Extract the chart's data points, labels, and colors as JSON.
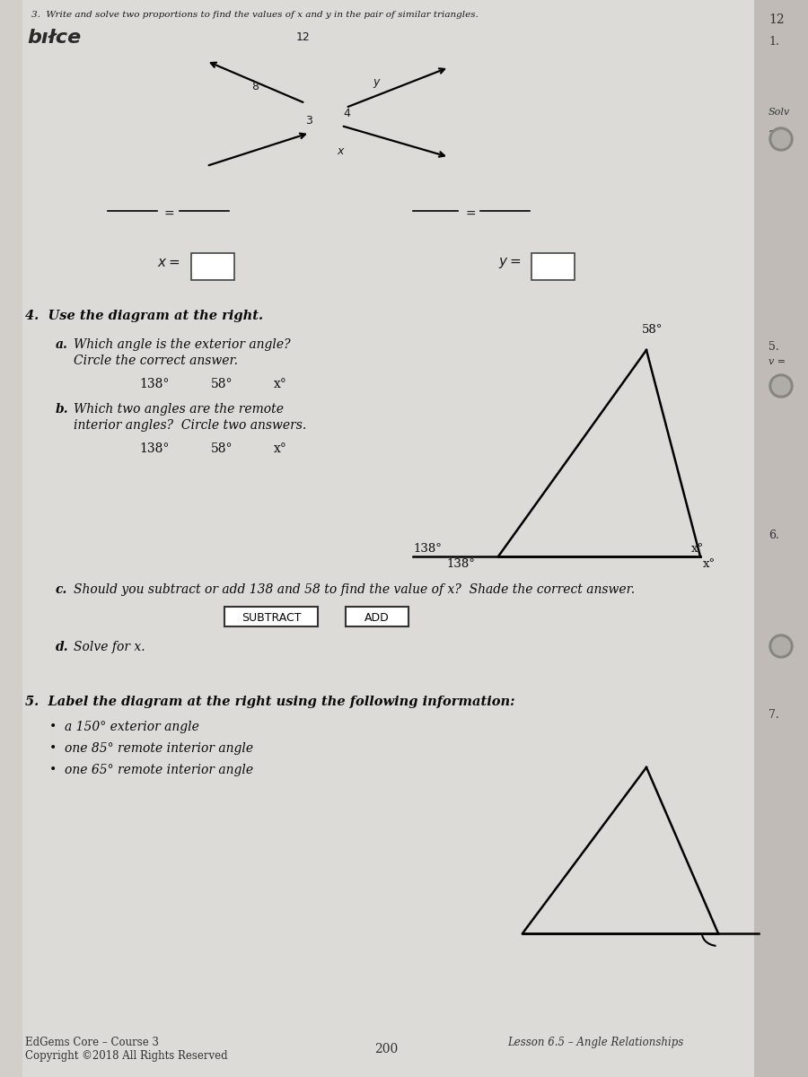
{
  "title3": "3.  Write and solve two proportions to find the values of x and y in the pair of similar triangles.",
  "section4_title": "4.  Use the diagram at the right.",
  "q4a_label": "a.",
  "q4a_line1": "Which angle is the exterior angle?",
  "q4a_line2": "Circle the correct answer.",
  "q4a_ans1": "138°",
  "q4a_ans2": "58°",
  "q4a_ans3": "x°",
  "q4b_label": "b.",
  "q4b_line1": "Which two angles are the remote",
  "q4b_line2": "interior angles?  Circle two answers.",
  "q4b_ans1": "138°",
  "q4b_ans2": "58°",
  "q4b_ans3": "x°",
  "q4c_label": "c.",
  "q4c_text": "Should you subtract or add 138 and 58 to find the value of x?  Shade the correct answer.",
  "subtract_label": "SUBTRACT",
  "add_label": "ADD",
  "q4d_label": "d.",
  "q4d_text": "Solve for x.",
  "section5_title": "5.  Label the diagram at the right using the following information:",
  "bullet1": "a 150° exterior angle",
  "bullet2": "one 85° remote interior angle",
  "bullet3": "one 65° remote interior angle",
  "footer_left1": "EdGems Core – Course 3",
  "footer_left2": "Copyright ©2018 All Rights Reserved",
  "footer_center": "200",
  "footer_right": "Lesson 6.5 – Angle Relationships",
  "page_bg": "#e2e2e0",
  "right_strip_bg": "#c8c4c0",
  "num12": "12",
  "label_1": "1.",
  "label_solv": "Solv",
  "label_3": "3.",
  "label_5": "5.",
  "label_v": "v =",
  "label_6": "6.",
  "label_7": "7."
}
